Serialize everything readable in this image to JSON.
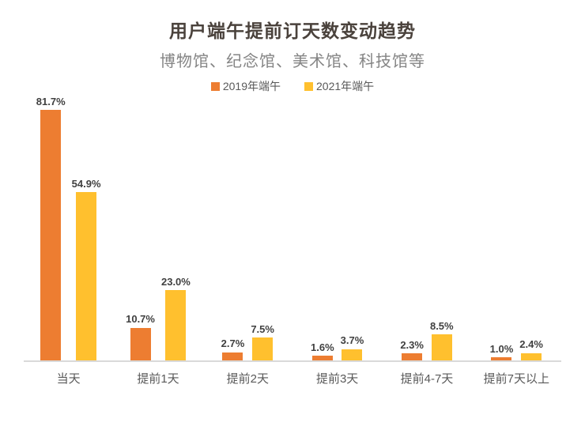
{
  "chart_data": {
    "type": "bar",
    "title": "用户端午提前订天数变动趋势",
    "subtitle": "博物馆、纪念馆、美术馆、科技馆等",
    "categories": [
      "当天",
      "提前1天",
      "提前2天",
      "提前3天",
      "提前4-7天",
      "提前7天以上"
    ],
    "series": [
      {
        "name": "2019年端午",
        "color": "#ED7D31",
        "values": [
          81.7,
          10.7,
          2.7,
          1.6,
          2.3,
          1.0
        ]
      },
      {
        "name": "2021年端午",
        "color": "#FFC02E",
        "values": [
          54.9,
          23.0,
          7.5,
          3.7,
          8.5,
          2.4
        ]
      }
    ],
    "value_label_format": "{value}%",
    "legend_position": "top",
    "grid": false,
    "xlabel": "",
    "ylabel": "",
    "ylim": [
      0,
      88
    ]
  },
  "colors": {
    "background": "#FFFFFF",
    "title_text": "#4A423C",
    "subtitle_text": "#848484",
    "legend_text": "#595959",
    "value_label_text": "#404040",
    "category_text": "#595959",
    "axis_line": "#D9D9D9"
  }
}
